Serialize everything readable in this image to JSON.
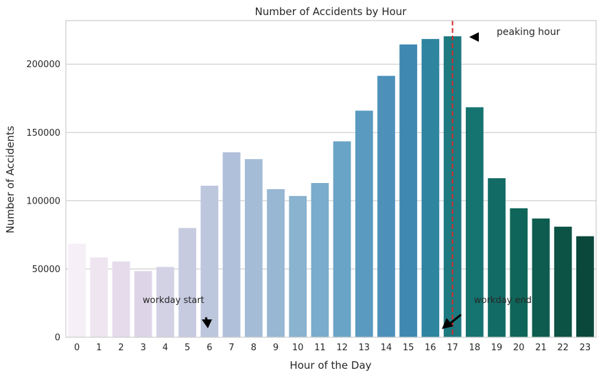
{
  "chart_data": {
    "type": "bar",
    "title": "Number of Accidents by Hour",
    "xlabel": "Hour of the Day",
    "ylabel": "Number of Accidents",
    "categories": [
      "0",
      "1",
      "2",
      "3",
      "4",
      "5",
      "6",
      "7",
      "8",
      "9",
      "10",
      "11",
      "12",
      "13",
      "14",
      "15",
      "16",
      "17",
      "18",
      "19",
      "20",
      "21",
      "22",
      "23"
    ],
    "values": [
      68500,
      58500,
      55500,
      48500,
      51500,
      80000,
      111000,
      135500,
      130500,
      108500,
      103500,
      113000,
      143500,
      166000,
      191500,
      214500,
      218500,
      220500,
      168500,
      116500,
      94500,
      87000,
      81000,
      74000
    ],
    "ylim": [
      0,
      232000
    ],
    "yticks": [
      0,
      50000,
      100000,
      150000,
      200000
    ],
    "ytick_labels": [
      "0",
      "50000",
      "100000",
      "150000",
      "200000"
    ],
    "grid": "horizontal",
    "colors": [
      "#f6eff7",
      "#eee5f0",
      "#e6dbeb",
      "#ddd5e7",
      "#d3d2e5",
      "#c6cbe0",
      "#bcc6dd",
      "#b0bfda",
      "#a4bcd6",
      "#97b7d3",
      "#89b3cf",
      "#7aaccb",
      "#69a4c6",
      "#5a9ac0",
      "#4d91bb",
      "#3f88b2",
      "#2f84a0",
      "#1d7a80",
      "#157370",
      "#136b66",
      "#0f6559",
      "#0e5c4f",
      "#0c5245",
      "#0a483c"
    ],
    "reference_line": {
      "x": 17,
      "color": "#d62728",
      "style": "dashed"
    },
    "annotations": [
      {
        "text": "workday start",
        "x": 6
      },
      {
        "text": "workday end",
        "x": 17
      },
      {
        "text": "peaking hour",
        "x": 17
      }
    ]
  }
}
